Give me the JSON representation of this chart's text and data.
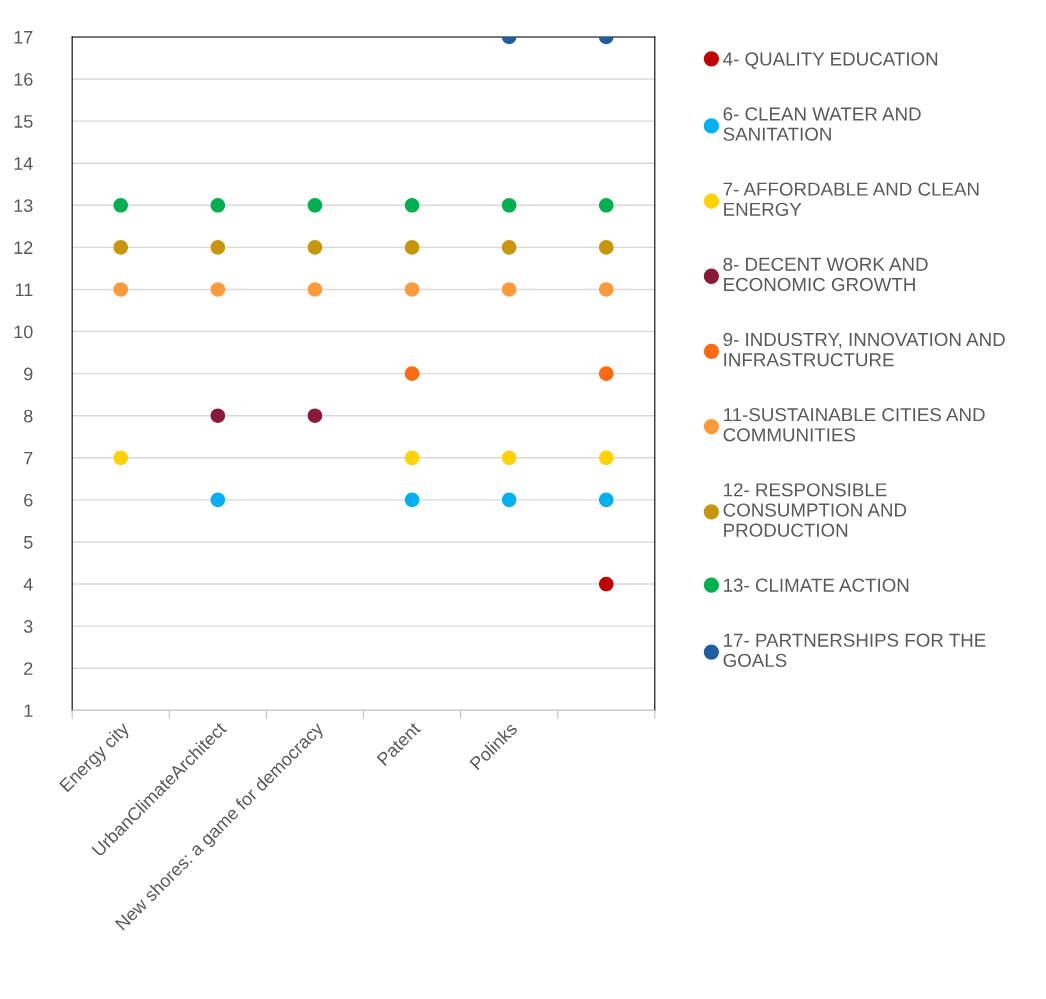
{
  "chart_data": {
    "type": "scatter",
    "categories": [
      "Energy city",
      "UrbanClimateArchitect",
      "New shores: a game for democracy",
      "Patent",
      "Polinks",
      null
    ],
    "series": [
      {
        "name": "4- QUALITY EDUCATION",
        "color": "#c00000",
        "values": [
          null,
          null,
          null,
          null,
          null,
          4
        ]
      },
      {
        "name": "6- CLEAN WATER AND\nSANITATION",
        "color": "#00b0f0",
        "values": [
          null,
          6,
          null,
          6,
          6,
          6
        ]
      },
      {
        "name": "7- AFFORDABLE AND CLEAN\nENERGY",
        "color": "#ffd200",
        "values": [
          7,
          null,
          null,
          7,
          7,
          7
        ]
      },
      {
        "name": "8- DECENT WORK AND\nECONOMIC GROWTH",
        "color": "#8b1a3a",
        "values": [
          null,
          8,
          8,
          null,
          null,
          null
        ]
      },
      {
        "name": "9- INDUSTRY, INNOVATION AND\nINFRASTRUCTURE",
        "color": "#ff6a13",
        "values": [
          null,
          null,
          null,
          9,
          null,
          9
        ]
      },
      {
        "name": "11-SUSTAINABLE CITIES AND\nCOMMUNITIES",
        "color": "#ff9a3c",
        "values": [
          11,
          11,
          11,
          11,
          11,
          11
        ]
      },
      {
        "name": "12- RESPONSIBLE\nCONSUMPTION AND\nPRODUCTION",
        "color": "#c8960c",
        "values": [
          12,
          12,
          12,
          12,
          12,
          12
        ]
      },
      {
        "name": "13- CLIMATE ACTION",
        "color": "#00b050",
        "values": [
          13,
          13,
          13,
          13,
          13,
          13
        ]
      },
      {
        "name": "17- PARTNERSHIPS FOR THE\nGOALS",
        "color": "#1f5fa0",
        "values": [
          null,
          null,
          null,
          null,
          17,
          17
        ]
      }
    ],
    "ylim": [
      1,
      17
    ],
    "yticks": [
      1,
      2,
      3,
      4,
      5,
      6,
      7,
      8,
      9,
      10,
      11,
      12,
      13,
      14,
      15,
      16,
      17
    ],
    "grid": "y",
    "legend": "right",
    "marker": "circle"
  }
}
